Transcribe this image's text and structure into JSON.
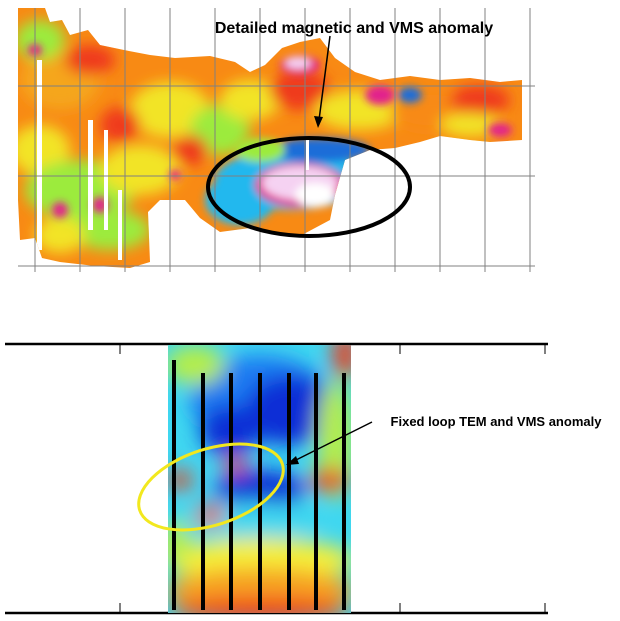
{
  "figure": {
    "top_panel": {
      "annotation": "Detailed magnetic and VMS anomaly",
      "annotation_icon": "arrow-icon",
      "highlight_shape": "ellipse",
      "highlight_color": "#000000",
      "grid": true,
      "palette": [
        "#1e6dd8",
        "#24b8ee",
        "#9ceb3c",
        "#f2e428",
        "#f88a14",
        "#ef3a1a",
        "#e2208c",
        "#f5d2f2"
      ]
    },
    "bottom_panel": {
      "annotation": "Fixed loop TEM and VMS anomaly",
      "annotation_icon": "arrow-icon",
      "highlight_shape": "ellipse",
      "highlight_color": "#f2e81e",
      "survey_line_count": 7,
      "palette": [
        "#0a2fd6",
        "#1f7cf2",
        "#3fd7f0",
        "#b5ee4a",
        "#f5f03a",
        "#f7a124",
        "#ef3c1e"
      ]
    }
  }
}
